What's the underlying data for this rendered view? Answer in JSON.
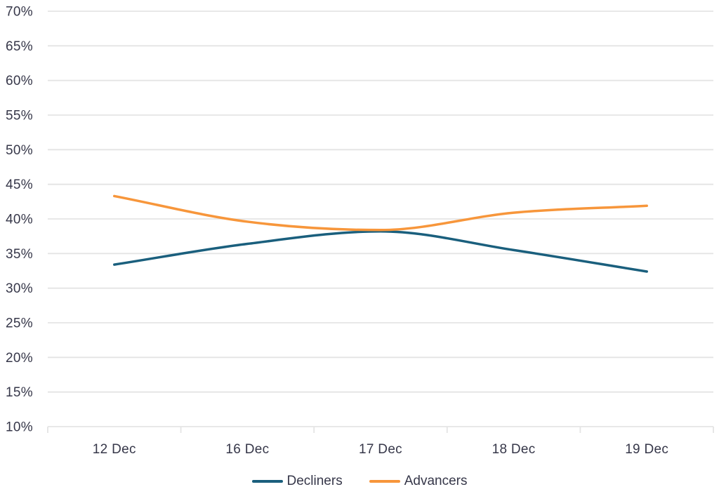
{
  "chart_data": {
    "type": "line",
    "title": "",
    "xlabel": "",
    "ylabel": "",
    "categories": [
      "12 Dec",
      "16 Dec",
      "17 Dec",
      "18 Dec",
      "19 Dec"
    ],
    "series": [
      {
        "name": "Decliners",
        "color": "#1A5F7D",
        "values": [
          33.4,
          36.4,
          38.2,
          35.5,
          32.4
        ]
      },
      {
        "name": "Advancers",
        "color": "#F7963B",
        "values": [
          43.3,
          39.6,
          38.4,
          40.9,
          41.9
        ]
      }
    ],
    "ylim": [
      10,
      70
    ],
    "ytick_step": 5,
    "yticks": [
      "70%",
      "65%",
      "60%",
      "55%",
      "50%",
      "45%",
      "40%",
      "35%",
      "30%",
      "25%",
      "20%",
      "15%",
      "10%"
    ],
    "ytick_format": "percent",
    "grid": true,
    "line_smoothing": "monotone",
    "legend_position": "bottom"
  },
  "style": {
    "text_color": "#363749",
    "grid_color": "#e4e4e4",
    "background": "#ffffff"
  }
}
